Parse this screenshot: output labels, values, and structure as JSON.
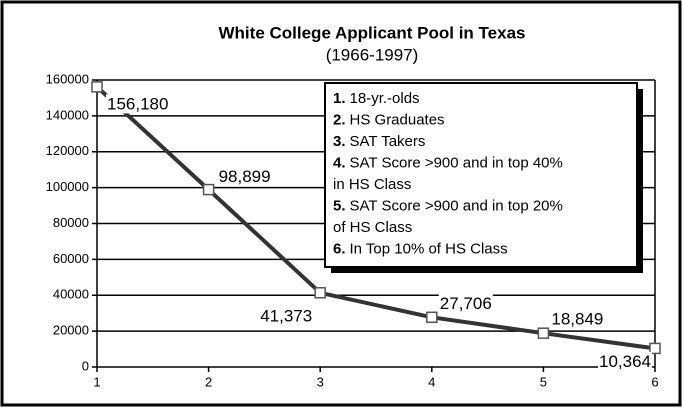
{
  "chart_data": {
    "type": "line",
    "title": "White College Applicant Pool in Texas",
    "subtitle": "(1966-1997)",
    "x": [
      1,
      2,
      3,
      4,
      5,
      6
    ],
    "xlim": [
      1,
      6
    ],
    "xticks": [
      1,
      2,
      3,
      4,
      5,
      6
    ],
    "ylim": [
      0,
      160000
    ],
    "yticks": [
      0,
      20000,
      40000,
      60000,
      80000,
      100000,
      120000,
      140000,
      160000
    ],
    "grid": true,
    "series": [
      {
        "color": "#333333",
        "values": [
          156180,
          98899,
          41373,
          27706,
          18849,
          10364
        ],
        "value_labels": [
          "156,180",
          "98,899",
          "41,373",
          "27,706",
          "18,849",
          "10,364"
        ]
      }
    ],
    "legend_items": [
      {
        "number": "1.",
        "lines": [
          "18-yr.-olds"
        ]
      },
      {
        "number": "2.",
        "lines": [
          "HS Graduates"
        ]
      },
      {
        "number": "3.",
        "lines": [
          "SAT Takers"
        ]
      },
      {
        "number": "4.",
        "lines": [
          "SAT Score >900 and in top 40%",
          "in HS Class"
        ]
      },
      {
        "number": "5.",
        "lines": [
          "SAT Score >900 and  in top 20%",
          "of HS Class"
        ]
      },
      {
        "number": "6.",
        "lines": [
          "In Top 10% of HS Class"
        ]
      }
    ]
  }
}
